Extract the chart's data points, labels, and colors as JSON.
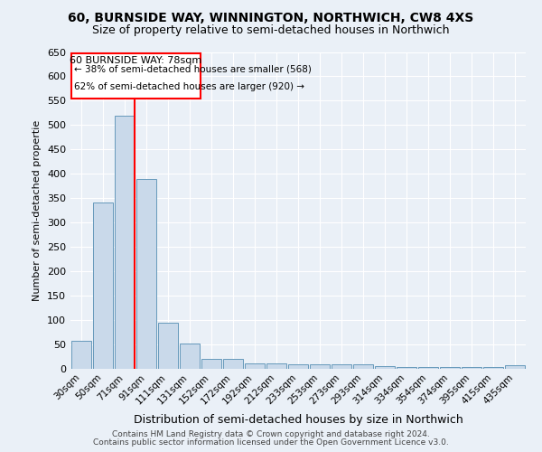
{
  "title": "60, BURNSIDE WAY, WINNINGTON, NORTHWICH, CW8 4XS",
  "subtitle": "Size of property relative to semi-detached houses in Northwich",
  "xlabel": "Distribution of semi-detached houses by size in Northwich",
  "ylabel": "Number of semi-detached propertie",
  "categories": [
    "30sqm",
    "50sqm",
    "71sqm",
    "91sqm",
    "111sqm",
    "131sqm",
    "152sqm",
    "172sqm",
    "192sqm",
    "212sqm",
    "233sqm",
    "253sqm",
    "273sqm",
    "293sqm",
    "314sqm",
    "334sqm",
    "354sqm",
    "374sqm",
    "395sqm",
    "415sqm",
    "435sqm"
  ],
  "values": [
    57,
    340,
    520,
    390,
    93,
    52,
    20,
    20,
    10,
    10,
    8,
    8,
    8,
    8,
    5,
    3,
    3,
    3,
    3,
    3,
    7
  ],
  "bar_color": "#c9d9ea",
  "bar_edge_color": "#6699bb",
  "annotation_title": "60 BURNSIDE WAY: 78sqm",
  "annotation_line1": "← 38% of semi-detached houses are smaller (568)",
  "annotation_line2": "62% of semi-detached houses are larger (920) →",
  "ylim": [
    0,
    650
  ],
  "yticks": [
    0,
    50,
    100,
    150,
    200,
    250,
    300,
    350,
    400,
    450,
    500,
    550,
    600,
    650
  ],
  "footnote1": "Contains HM Land Registry data © Crown copyright and database right 2024.",
  "footnote2": "Contains public sector information licensed under the Open Government Licence v3.0.",
  "bg_color": "#eaf0f7",
  "grid_color": "white",
  "title_fontsize": 10,
  "subtitle_fontsize": 9
}
